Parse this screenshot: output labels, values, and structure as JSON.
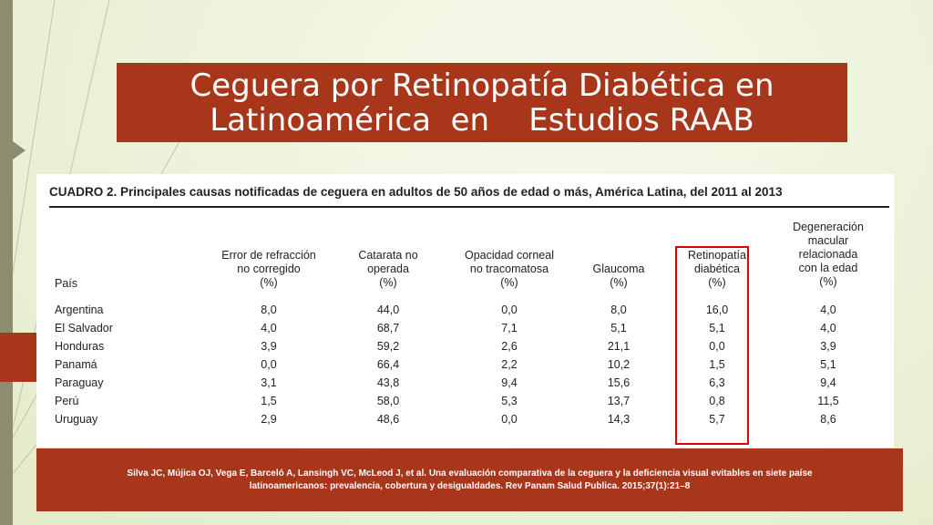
{
  "slide": {
    "title_line1": "Ceguera por Retinopatía Diabética en",
    "title_line2": "Latinoamérica  en    Estudios RAAB"
  },
  "table": {
    "caption": "CUADRO 2. Principales causas notificadas de ceguera en adultos de 50 años de edad o más, América Latina, del 2011 al 2013",
    "country_header": "País",
    "columns": [
      {
        "lines": [
          "Error de refracción",
          "no corregido",
          "(%)"
        ]
      },
      {
        "lines": [
          "Catarata no",
          "operada",
          "(%)"
        ]
      },
      {
        "lines": [
          "Opacidad corneal",
          "no tracomatosa",
          "(%)"
        ]
      },
      {
        "lines": [
          "Glaucoma",
          "(%)"
        ]
      },
      {
        "lines": [
          "Retinopatía",
          "diabética",
          "(%)"
        ]
      },
      {
        "lines": [
          "Degeneración",
          "macular",
          "relacionada",
          "con la edad",
          "(%)"
        ]
      }
    ],
    "rows": [
      {
        "country": "Argentina",
        "values": [
          "8,0",
          "44,0",
          "0,0",
          "8,0",
          "16,0",
          "4,0"
        ]
      },
      {
        "country": "El Salvador",
        "values": [
          "4,0",
          "68,7",
          "7,1",
          "5,1",
          "5,1",
          "4,0"
        ]
      },
      {
        "country": "Honduras",
        "values": [
          "3,9",
          "59,2",
          "2,6",
          "21,1",
          "0,0",
          "3,9"
        ]
      },
      {
        "country": "Panamá",
        "values": [
          "0,0",
          "66,4",
          "2,2",
          "10,2",
          "1,5",
          "5,1"
        ]
      },
      {
        "country": "Paraguay",
        "values": [
          "3,1",
          "43,8",
          "9,4",
          "15,6",
          "6,3",
          "9,4"
        ]
      },
      {
        "country": "Perú",
        "values": [
          "1,5",
          "58,0",
          "5,3",
          "13,7",
          "0,8",
          "11,5"
        ]
      },
      {
        "country": "Uruguay",
        "values": [
          "2,9",
          "48,6",
          "0,0",
          "14,3",
          "5,7",
          "8,6"
        ]
      }
    ]
  },
  "citation": {
    "line1": "Silva JC, Mújica OJ, Vega E, Barceló A, Lansingh VC, McLeod J, et al. Una evaluación comparativa de la ceguera y la deficiencia visual evitables en siete paíse",
    "line2": "latinoamericanos: prevalencia, cobertura y desigualdades. Rev Panam Salud Publica. 2015;37(1):21–8"
  },
  "colors": {
    "accent": "#a8361b",
    "highlight": "#e00000",
    "background": "#eef3dc"
  }
}
